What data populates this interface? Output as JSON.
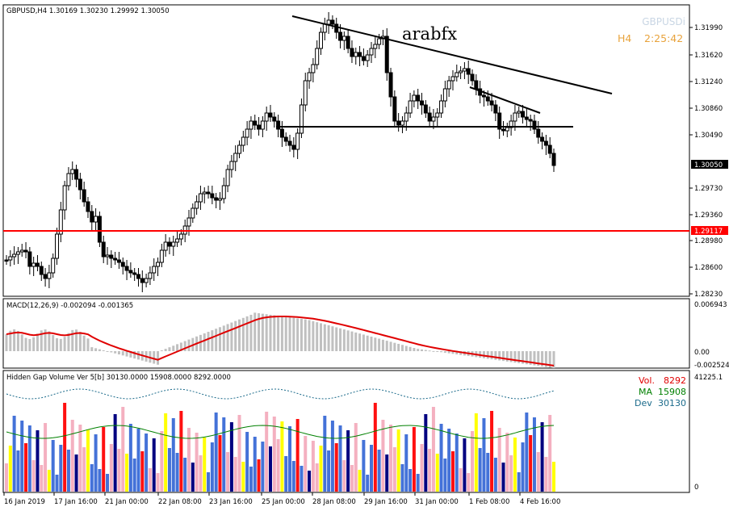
{
  "main_pane": {
    "header": "GBPUSD,H4  1.30169 1.30230 1.29992 1.30050",
    "symbol_label": "GBPUSDi",
    "timeframe_label": "H4",
    "countdown": "2:25:42",
    "watermark": "arabfx",
    "price_ticks": [
      "1.31990",
      "1.31620",
      "1.31240",
      "1.30860",
      "1.30490",
      "1.29730",
      "1.29360",
      "1.28980",
      "1.28600",
      "1.28230"
    ],
    "current_price_label": "1.30050",
    "hline_price_label": "1.29117",
    "price_range": [
      1.2823,
      1.3236
    ],
    "colors": {
      "hline": "#ff0000",
      "current_price_bg": "#000000",
      "candle": "#000000"
    }
  },
  "macd_pane": {
    "header": "MACD(12,26,9) -0.002094 -0.001365",
    "ticks": [
      "0.006943",
      "0.00",
      "-0.002524"
    ],
    "colors": {
      "histogram": "#c0c0c0",
      "signal": "#e00000"
    }
  },
  "volume_pane": {
    "header": "Hidden Gap Volume Ver 5[b] 30130.0000 15908.0000 8292.0000",
    "top_tick": "41225.1",
    "bottom_tick": "0",
    "vol_label": "Vol.",
    "vol_value": "8292",
    "ma_label": "MA",
    "ma_value": "15908",
    "dev_label": "Dev",
    "dev_value": "30130",
    "colors": {
      "vol": "#e00000",
      "ma": "#008000",
      "dev": "#1a6a8a",
      "blue": "#4472d8",
      "pink": "#f4b0c0",
      "red": "#ff1010",
      "yellow": "#ffff00",
      "navy": "#000080"
    }
  },
  "time_axis": {
    "labels": [
      "16 Jan 2019",
      "17 Jan 16:00",
      "21 Jan 00:00",
      "22 Jan 08:00",
      "23 Jan 16:00",
      "25 Jan 00:00",
      "28 Jan 08:00",
      "29 Jan 16:00",
      "31 Jan 00:00",
      "1 Feb 08:00",
      "4 Feb 16:00"
    ]
  }
}
